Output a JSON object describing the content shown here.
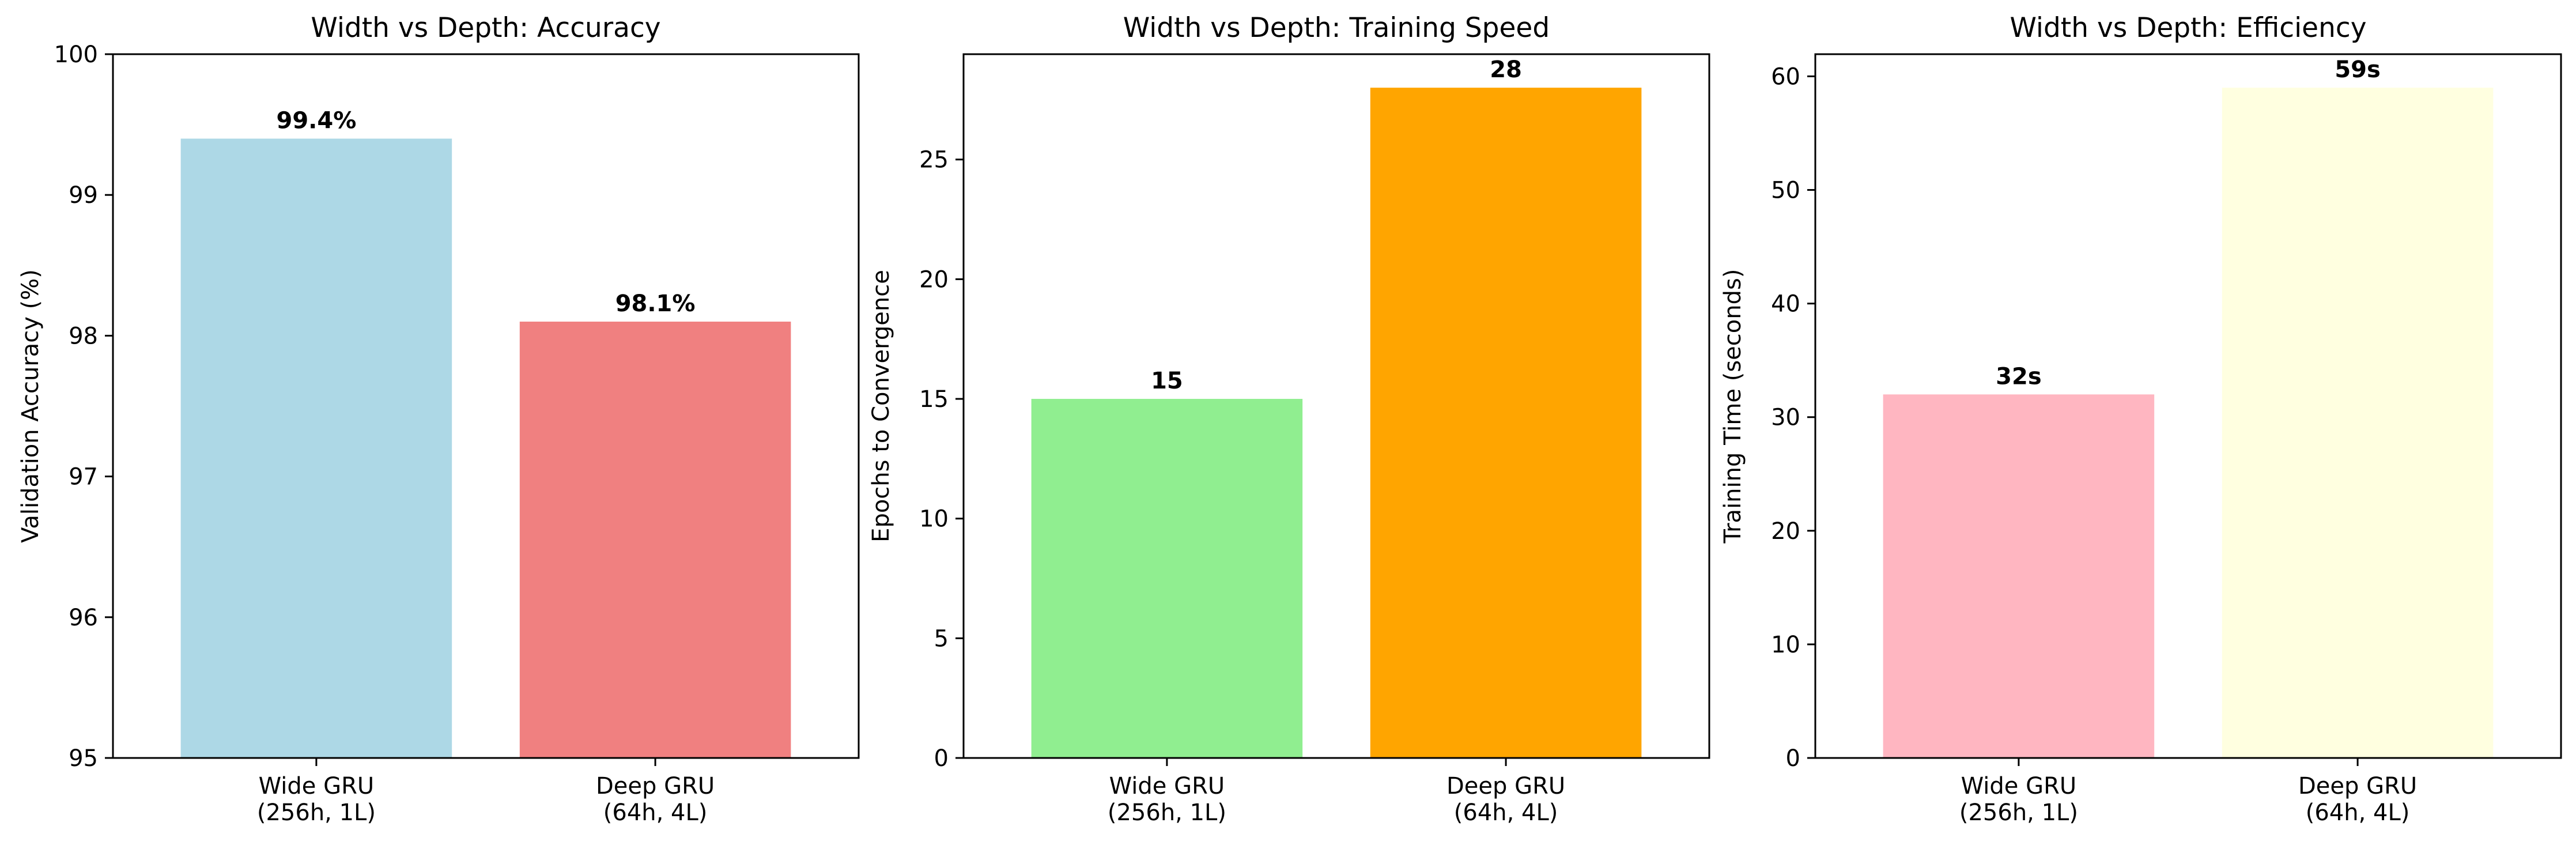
{
  "chart_data": [
    {
      "type": "bar",
      "title": "Width vs Depth: Accuracy",
      "xlabel": "",
      "ylabel": "Validation Accuracy (%)",
      "categories": [
        "Wide GRU\n(256h, 1L)",
        "Deep GRU\n(64h, 4L)"
      ],
      "values": [
        99.4,
        98.1
      ],
      "data_labels": [
        "99.4%",
        "98.1%"
      ],
      "colors": [
        "#add8e6",
        "#f08080"
      ],
      "ylim": [
        95,
        100
      ],
      "yticks": [
        95,
        96,
        97,
        98,
        99,
        100
      ],
      "grid": false
    },
    {
      "type": "bar",
      "title": "Width vs Depth: Training Speed",
      "xlabel": "",
      "ylabel": "Epochs to Convergence",
      "categories": [
        "Wide GRU\n(256h, 1L)",
        "Deep GRU\n(64h, 4L)"
      ],
      "values": [
        15,
        28
      ],
      "data_labels": [
        "15",
        "28"
      ],
      "colors": [
        "#90ee90",
        "#ffa500"
      ],
      "ylim": [
        0,
        29.4
      ],
      "yticks": [
        0,
        5,
        10,
        15,
        20,
        25
      ],
      "grid": false
    },
    {
      "type": "bar",
      "title": "Width vs Depth: Efficiency",
      "xlabel": "",
      "ylabel": "Training Time (seconds)",
      "categories": [
        "Wide GRU\n(256h, 1L)",
        "Deep GRU\n(64h, 4L)"
      ],
      "values": [
        32,
        59
      ],
      "data_labels": [
        "32s",
        "59s"
      ],
      "colors": [
        "#ffb6c1",
        "#ffffe0"
      ],
      "ylim": [
        0,
        61.95
      ],
      "yticks": [
        0,
        10,
        20,
        30,
        40,
        50,
        60
      ],
      "grid": false
    }
  ]
}
